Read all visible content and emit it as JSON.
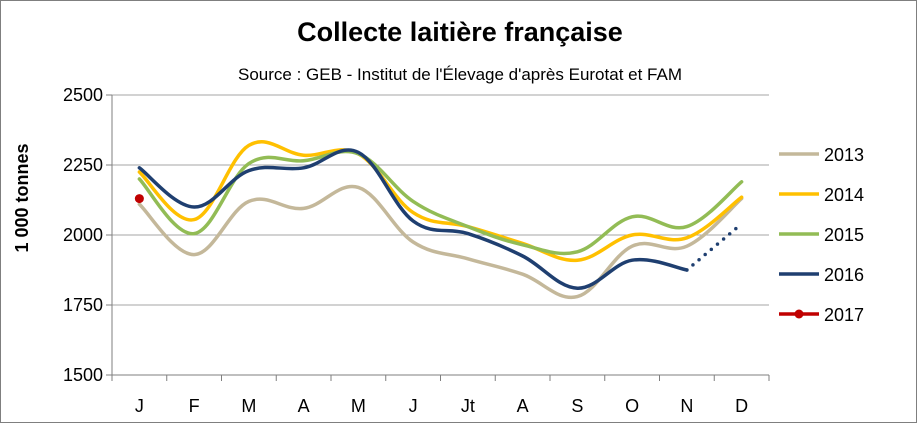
{
  "chart_data": {
    "type": "line",
    "title": "Collecte laitière française",
    "subtitle": "Source : GEB - Institut de l'Élevage  d'après  Eurotat et FAM",
    "ylabel": "1 000 tonnes",
    "xlabel": "",
    "categories": [
      "J",
      "F",
      "M",
      "A",
      "M",
      "J",
      "Jt",
      "A",
      "S",
      "O",
      "N",
      "D"
    ],
    "ylim": [
      1500,
      2500
    ],
    "yticks": [
      1500,
      1750,
      2000,
      2250,
      2500
    ],
    "grid": "horizontal",
    "legend_position": "right",
    "series": [
      {
        "name": "2013",
        "color": "#c4b89a",
        "values": [
          2110,
          1930,
          2120,
          2095,
          2170,
          1975,
          1915,
          1860,
          1780,
          1960,
          1960,
          2130
        ]
      },
      {
        "name": "2014",
        "color": "#ffc000",
        "values": [
          2225,
          2055,
          2320,
          2285,
          2290,
          2080,
          2030,
          1970,
          1910,
          2000,
          1990,
          2135
        ]
      },
      {
        "name": "2015",
        "color": "#92bc55",
        "values": [
          2200,
          2005,
          2255,
          2265,
          2290,
          2120,
          2030,
          1965,
          1940,
          2065,
          2030,
          2190
        ]
      },
      {
        "name": "2016",
        "color": "#1f3f70",
        "values": [
          2240,
          2100,
          2230,
          2240,
          2295,
          2050,
          2005,
          1925,
          1810,
          1910,
          1875,
          null
        ],
        "dotted_extension": [
          null,
          null,
          null,
          null,
          null,
          null,
          null,
          null,
          null,
          null,
          1875,
          2040
        ]
      },
      {
        "name": "2017",
        "color": "#c00000",
        "values": [
          2130,
          null,
          null,
          null,
          null,
          null,
          null,
          null,
          null,
          null,
          null,
          null
        ],
        "marker": "circle"
      }
    ]
  }
}
